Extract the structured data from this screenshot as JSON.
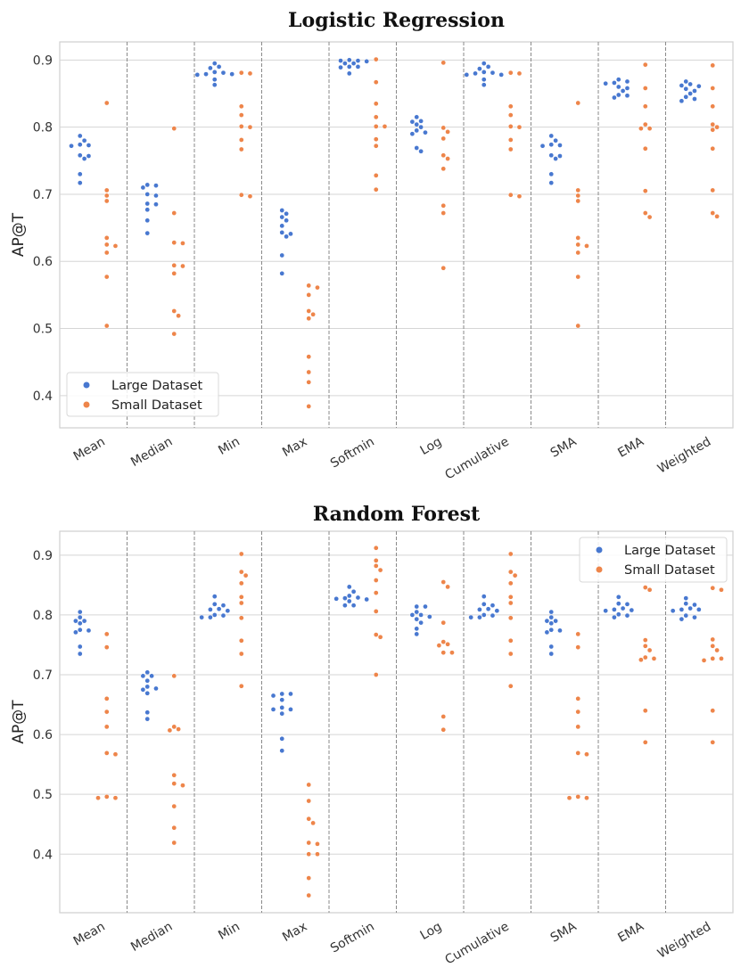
{
  "chart_data": [
    {
      "type": "scatter",
      "subtype": "swarm",
      "title": "Logistic Regression",
      "xlabel": "",
      "ylabel": "AP@T",
      "ylim": [
        0.352,
        0.927
      ],
      "yticks": [
        0.4,
        0.5,
        0.6,
        0.7,
        0.8,
        0.9
      ],
      "grid": true,
      "legend": "bottom-left",
      "categories": [
        "Mean",
        "Median",
        "Min",
        "Max",
        "Softmin",
        "Log",
        "Cumulative",
        "SMA",
        "EMA",
        "Weighted"
      ],
      "series": [
        {
          "name": "Large Dataset",
          "color": "#4878d0",
          "values": [
            [
              0.787,
              0.78,
              0.773,
              0.772,
              0.774,
              0.757,
              0.753,
              0.758,
              0.73,
              0.717
            ],
            [
              0.713,
              0.71,
              0.714,
              0.7,
              0.698,
              0.686,
              0.685,
              0.677,
              0.661,
              0.642
            ],
            [
              0.895,
              0.89,
              0.888,
              0.882,
              0.881,
              0.879,
              0.878,
              0.879,
              0.871,
              0.863
            ],
            [
              0.676,
              0.671,
              0.666,
              0.661,
              0.653,
              0.641,
              0.643,
              0.637,
              0.609,
              0.582
            ],
            [
              0.9,
              0.895,
              0.899,
              0.895,
              0.899,
              0.898,
              0.889,
              0.89,
              0.89,
              0.88
            ],
            [
              0.815,
              0.809,
              0.808,
              0.804,
              0.8,
              0.795,
              0.792,
              0.79,
              0.769,
              0.764
            ],
            [
              0.895,
              0.89,
              0.887,
              0.882,
              0.881,
              0.878,
              0.878,
              0.88,
              0.871,
              0.863
            ],
            [
              0.787,
              0.78,
              0.773,
              0.772,
              0.774,
              0.757,
              0.753,
              0.758,
              0.73,
              0.717
            ],
            [
              0.871,
              0.868,
              0.866,
              0.865,
              0.858,
              0.86,
              0.854,
              0.848,
              0.847,
              0.844
            ],
            [
              0.868,
              0.864,
              0.861,
              0.862,
              0.857,
              0.854,
              0.85,
              0.845,
              0.842,
              0.839
            ]
          ]
        },
        {
          "name": "Small Dataset",
          "color": "#ee854a",
          "values": [
            [
              0.836,
              0.706,
              0.698,
              0.69,
              0.635,
              0.625,
              0.623,
              0.613,
              0.577,
              0.504
            ],
            [
              0.798,
              0.672,
              0.628,
              0.627,
              0.594,
              0.593,
              0.582,
              0.526,
              0.519,
              0.492
            ],
            [
              0.881,
              0.88,
              0.831,
              0.818,
              0.801,
              0.8,
              0.781,
              0.767,
              0.699,
              0.697
            ],
            [
              0.564,
              0.561,
              0.55,
              0.526,
              0.521,
              0.515,
              0.458,
              0.435,
              0.42,
              0.384
            ],
            [
              0.901,
              0.867,
              0.835,
              0.815,
              0.801,
              0.801,
              0.782,
              0.772,
              0.728,
              0.707
            ],
            [
              0.896,
              0.799,
              0.793,
              0.783,
              0.758,
              0.753,
              0.738,
              0.683,
              0.672,
              0.59
            ],
            [
              0.881,
              0.88,
              0.831,
              0.818,
              0.801,
              0.8,
              0.781,
              0.767,
              0.699,
              0.697
            ],
            [
              0.836,
              0.706,
              0.698,
              0.69,
              0.635,
              0.625,
              0.623,
              0.613,
              0.577,
              0.504
            ],
            [
              0.893,
              0.858,
              0.831,
              0.804,
              0.798,
              0.798,
              0.768,
              0.705,
              0.672,
              0.666
            ],
            [
              0.892,
              0.858,
              0.831,
              0.804,
              0.8,
              0.796,
              0.768,
              0.706,
              0.672,
              0.667
            ]
          ]
        }
      ]
    },
    {
      "type": "scatter",
      "subtype": "swarm",
      "title": "Random Forest",
      "xlabel": "",
      "ylabel": "AP@T",
      "ylim": [
        0.302,
        0.94
      ],
      "yticks": [
        0.4,
        0.5,
        0.6,
        0.7,
        0.8,
        0.9
      ],
      "grid": true,
      "legend": "top-right",
      "categories": [
        "Mean",
        "Median",
        "Min",
        "Max",
        "Softmin",
        "Log",
        "Cumulative",
        "SMA",
        "EMA",
        "Weighted"
      ],
      "series": [
        {
          "name": "Large Dataset",
          "color": "#4878d0",
          "values": [
            [
              0.805,
              0.796,
              0.79,
              0.79,
              0.786,
              0.774,
              0.771,
              0.775,
              0.747,
              0.735
            ],
            [
              0.704,
              0.698,
              0.698,
              0.69,
              0.68,
              0.677,
              0.675,
              0.669,
              0.637,
              0.626
            ],
            [
              0.831,
              0.818,
              0.816,
              0.809,
              0.807,
              0.81,
              0.8,
              0.796,
              0.796,
              0.799
            ],
            [
              0.668,
              0.665,
              0.668,
              0.658,
              0.645,
              0.642,
              0.642,
              0.635,
              0.593,
              0.573
            ],
            [
              0.847,
              0.839,
              0.832,
              0.829,
              0.827,
              0.823,
              0.826,
              0.816,
              0.816,
              0.828
            ],
            [
              0.814,
              0.814,
              0.805,
              0.8,
              0.8,
              0.797,
              0.793,
              0.787,
              0.777,
              0.768
            ],
            [
              0.831,
              0.818,
              0.816,
              0.809,
              0.807,
              0.81,
              0.8,
              0.796,
              0.796,
              0.799
            ],
            [
              0.805,
              0.796,
              0.79,
              0.79,
              0.786,
              0.774,
              0.771,
              0.775,
              0.747,
              0.735
            ],
            [
              0.83,
              0.819,
              0.818,
              0.811,
              0.808,
              0.807,
              0.809,
              0.799,
              0.796,
              0.801
            ],
            [
              0.828,
              0.819,
              0.817,
              0.811,
              0.809,
              0.807,
              0.809,
              0.799,
              0.796,
              0.793
            ]
          ]
        },
        {
          "name": "Small Dataset",
          "color": "#ee854a",
          "values": [
            [
              0.768,
              0.746,
              0.66,
              0.638,
              0.613,
              0.567,
              0.569,
              0.496,
              0.494,
              0.494
            ],
            [
              0.698,
              0.613,
              0.609,
              0.607,
              0.532,
              0.518,
              0.515,
              0.48,
              0.444,
              0.419
            ],
            [
              0.902,
              0.872,
              0.866,
              0.853,
              0.83,
              0.82,
              0.795,
              0.757,
              0.735,
              0.681
            ],
            [
              0.516,
              0.489,
              0.459,
              0.452,
              0.419,
              0.417,
              0.4,
              0.4,
              0.36,
              0.331
            ],
            [
              0.912,
              0.891,
              0.882,
              0.875,
              0.858,
              0.837,
              0.806,
              0.767,
              0.763,
              0.7
            ],
            [
              0.855,
              0.847,
              0.787,
              0.755,
              0.749,
              0.751,
              0.737,
              0.737,
              0.63,
              0.608
            ],
            [
              0.902,
              0.872,
              0.866,
              0.853,
              0.83,
              0.82,
              0.795,
              0.757,
              0.735,
              0.681
            ],
            [
              0.768,
              0.746,
              0.66,
              0.638,
              0.613,
              0.567,
              0.569,
              0.496,
              0.494,
              0.494
            ],
            [
              0.846,
              0.842,
              0.758,
              0.748,
              0.741,
              0.727,
              0.725,
              0.729,
              0.64,
              0.587
            ],
            [
              0.845,
              0.842,
              0.759,
              0.748,
              0.741,
              0.727,
              0.724,
              0.727,
              0.64,
              0.587
            ]
          ]
        }
      ]
    }
  ]
}
